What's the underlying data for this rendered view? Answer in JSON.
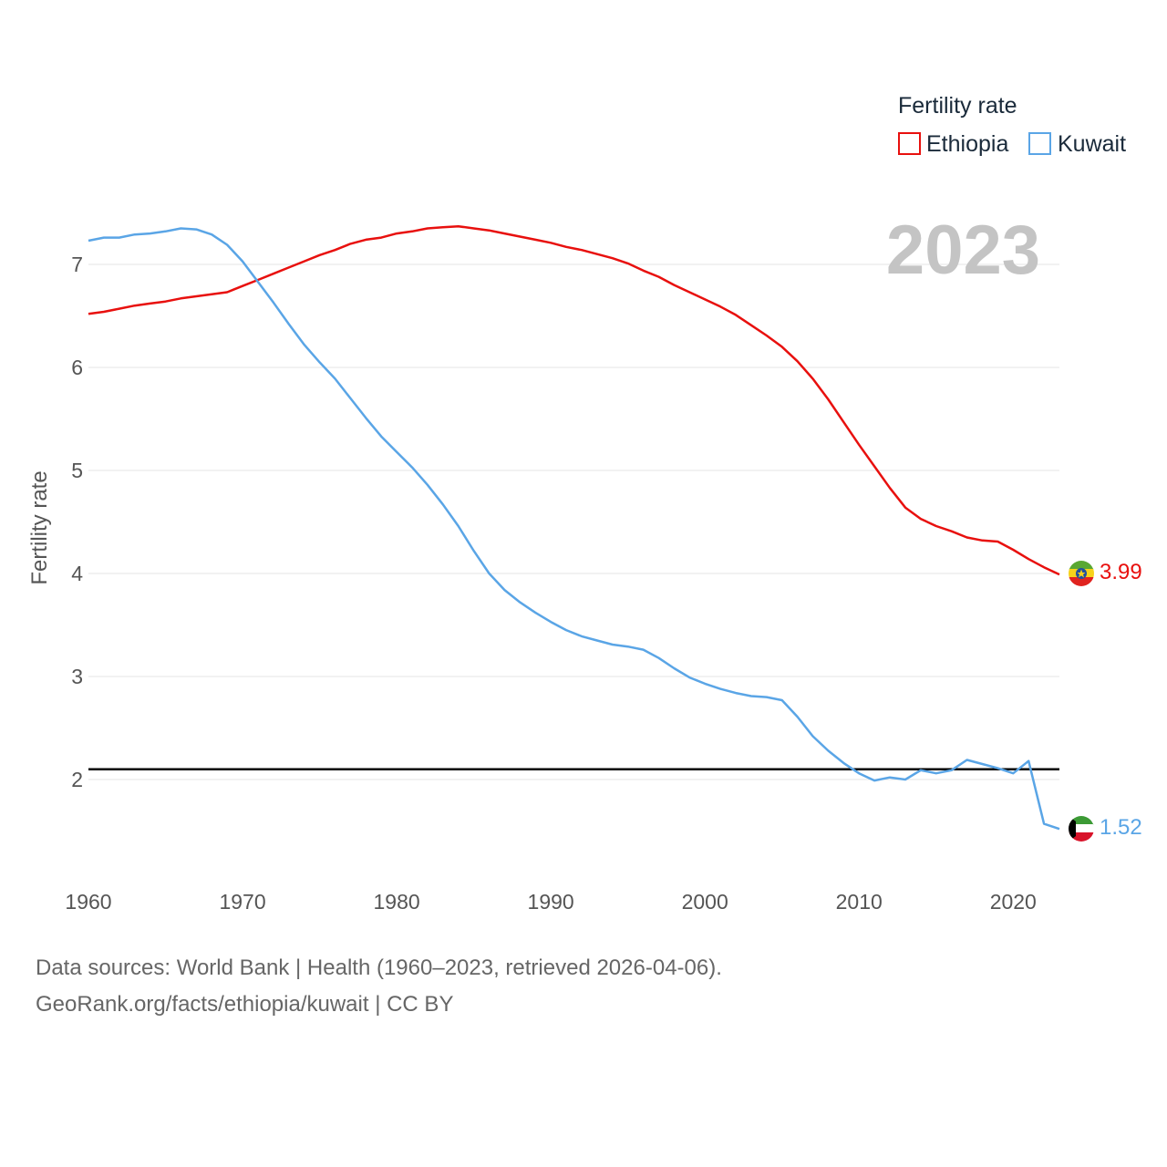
{
  "chart_data": {
    "type": "line",
    "title": "",
    "xlabel": "",
    "ylabel": "Fertility rate",
    "xlim": [
      1960,
      2023
    ],
    "ylim": [
      1.0,
      7.8
    ],
    "xticks": [
      1960,
      1970,
      1980,
      1990,
      2000,
      2010,
      2020
    ],
    "yticks": [
      2,
      3,
      4,
      5,
      6,
      7
    ],
    "x": [
      1960,
      1961,
      1962,
      1963,
      1964,
      1965,
      1966,
      1967,
      1968,
      1969,
      1970,
      1971,
      1972,
      1973,
      1974,
      1975,
      1976,
      1977,
      1978,
      1979,
      1980,
      1981,
      1982,
      1983,
      1984,
      1985,
      1986,
      1987,
      1988,
      1989,
      1990,
      1991,
      1992,
      1993,
      1994,
      1995,
      1996,
      1997,
      1998,
      1999,
      2000,
      2001,
      2002,
      2003,
      2004,
      2005,
      2006,
      2007,
      2008,
      2009,
      2010,
      2011,
      2012,
      2013,
      2014,
      2015,
      2016,
      2017,
      2018,
      2019,
      2020,
      2021,
      2022,
      2023
    ],
    "series": [
      {
        "name": "Ethiopia",
        "color": "#e8100e",
        "end_value": "3.99",
        "flag": "ethiopia-flag",
        "values": [
          6.52,
          6.54,
          6.57,
          6.6,
          6.62,
          6.64,
          6.67,
          6.69,
          6.71,
          6.73,
          6.79,
          6.85,
          6.91,
          6.97,
          7.03,
          7.09,
          7.14,
          7.2,
          7.24,
          7.26,
          7.3,
          7.32,
          7.35,
          7.36,
          7.37,
          7.35,
          7.33,
          7.3,
          7.27,
          7.24,
          7.21,
          7.17,
          7.14,
          7.1,
          7.06,
          7.01,
          6.94,
          6.88,
          6.8,
          6.73,
          6.66,
          6.59,
          6.51,
          6.41,
          6.31,
          6.2,
          6.06,
          5.89,
          5.69,
          5.47,
          5.25,
          5.04,
          4.83,
          4.64,
          4.53,
          4.46,
          4.41,
          4.35,
          4.32,
          4.31,
          4.23,
          4.14,
          4.06,
          3.99
        ]
      },
      {
        "name": "Kuwait",
        "color": "#5aa5e6",
        "end_value": "1.52",
        "flag": "kuwait-flag",
        "values": [
          7.23,
          7.26,
          7.26,
          7.29,
          7.3,
          7.32,
          7.35,
          7.34,
          7.29,
          7.19,
          7.03,
          6.83,
          6.63,
          6.42,
          6.22,
          6.05,
          5.89,
          5.7,
          5.51,
          5.33,
          5.18,
          5.03,
          4.86,
          4.67,
          4.46,
          4.22,
          4.0,
          3.84,
          3.72,
          3.62,
          3.53,
          3.45,
          3.39,
          3.35,
          3.31,
          3.29,
          3.26,
          3.18,
          3.08,
          2.99,
          2.93,
          2.88,
          2.84,
          2.81,
          2.8,
          2.77,
          2.61,
          2.42,
          2.28,
          2.16,
          2.06,
          1.99,
          2.02,
          2.0,
          2.09,
          2.06,
          2.09,
          2.19,
          2.15,
          2.11,
          2.06,
          2.18,
          1.57,
          1.52
        ]
      }
    ],
    "reference_line": {
      "value": 2.1,
      "color": "#000000"
    },
    "legend": {
      "title": "Fertility rate",
      "placement": "top-right"
    },
    "year_label": "2023"
  },
  "footer": {
    "line1": "Data sources: World Bank | Health (1960–2023, retrieved 2026-04-06).",
    "line2": "GeoRank.org/facts/ethiopia/kuwait | CC BY"
  }
}
